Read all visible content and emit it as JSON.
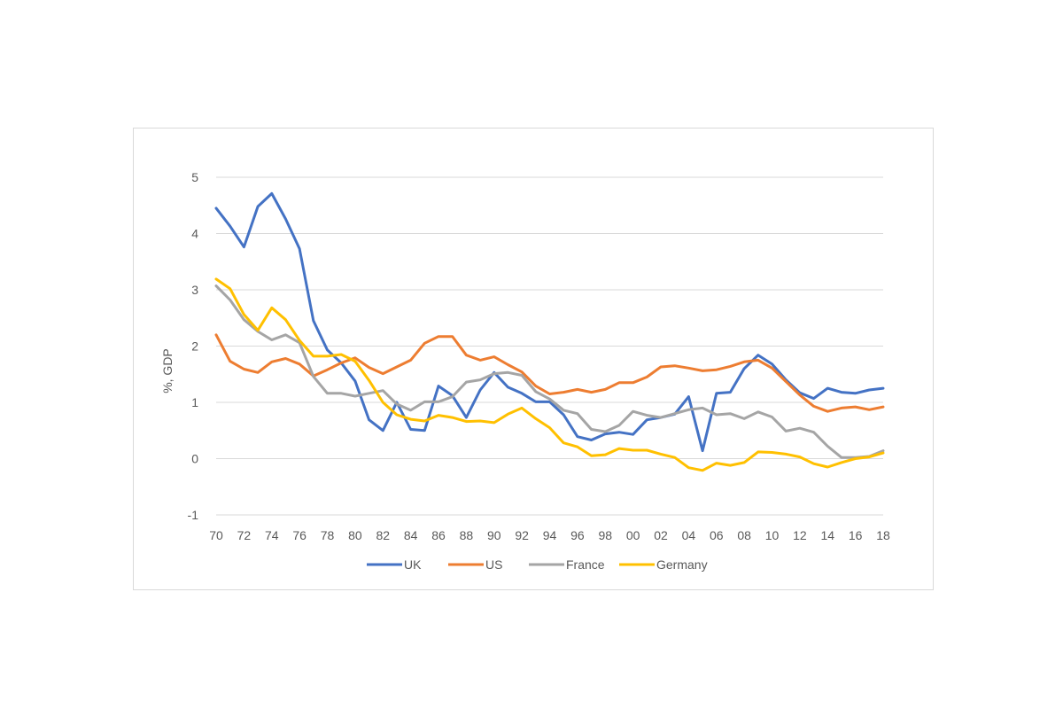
{
  "chart_data": {
    "type": "line",
    "title": "",
    "xlabel": "",
    "ylabel": "%, GDP",
    "ylim": [
      -1,
      5
    ],
    "yticks": [
      "-1",
      "0",
      "1",
      "2",
      "3",
      "4",
      "5"
    ],
    "x": [
      1970,
      1971,
      1972,
      1973,
      1974,
      1975,
      1976,
      1977,
      1978,
      1979,
      1980,
      1981,
      1982,
      1983,
      1984,
      1985,
      1986,
      1987,
      1988,
      1989,
      1990,
      1991,
      1992,
      1993,
      1994,
      1995,
      1996,
      1997,
      1998,
      1999,
      2000,
      2001,
      2002,
      2003,
      2004,
      2005,
      2006,
      2007,
      2008,
      2009,
      2010,
      2011,
      2012,
      2013,
      2014,
      2015,
      2016,
      2017,
      2018
    ],
    "xtick_labels": [
      "70",
      "72",
      "74",
      "76",
      "78",
      "80",
      "82",
      "84",
      "86",
      "88",
      "90",
      "92",
      "94",
      "96",
      "98",
      "00",
      "02",
      "04",
      "06",
      "08",
      "10",
      "12",
      "14",
      "16",
      "18"
    ],
    "grid": "horizontal",
    "legend_position": "bottom",
    "series": [
      {
        "name": "UK",
        "color": "#4472C4",
        "values": [
          4.45,
          4.13,
          3.76,
          4.48,
          4.71,
          4.26,
          3.73,
          2.45,
          1.93,
          1.7,
          1.38,
          0.69,
          0.5,
          1.0,
          0.52,
          0.5,
          1.29,
          1.12,
          0.73,
          1.22,
          1.53,
          1.27,
          1.16,
          1.01,
          1.01,
          0.78,
          0.39,
          0.33,
          0.44,
          0.47,
          0.43,
          0.69,
          0.73,
          0.79,
          1.1,
          0.14,
          1.16,
          1.18,
          1.6,
          1.84,
          1.68,
          1.4,
          1.17,
          1.07,
          1.25,
          1.18,
          1.16,
          1.22,
          1.25
        ]
      },
      {
        "name": "US",
        "color": "#ED7D31",
        "values": [
          2.2,
          1.73,
          1.59,
          1.53,
          1.72,
          1.78,
          1.68,
          1.47,
          1.58,
          1.7,
          1.79,
          1.62,
          1.51,
          1.63,
          1.75,
          2.05,
          2.17,
          2.17,
          1.84,
          1.75,
          1.81,
          1.67,
          1.54,
          1.29,
          1.15,
          1.18,
          1.23,
          1.18,
          1.23,
          1.35,
          1.35,
          1.45,
          1.63,
          1.65,
          1.61,
          1.56,
          1.58,
          1.64,
          1.72,
          1.75,
          1.61,
          1.37,
          1.13,
          0.93,
          0.84,
          0.9,
          0.92,
          0.87,
          0.92
        ]
      },
      {
        "name": "France",
        "color": "#A5A5A5",
        "values": [
          3.07,
          2.82,
          2.47,
          2.26,
          2.11,
          2.2,
          2.06,
          1.46,
          1.16,
          1.16,
          1.11,
          1.16,
          1.21,
          0.97,
          0.86,
          1.01,
          1.01,
          1.1,
          1.36,
          1.4,
          1.51,
          1.53,
          1.48,
          1.19,
          1.06,
          0.86,
          0.8,
          0.52,
          0.48,
          0.59,
          0.84,
          0.77,
          0.73,
          0.8,
          0.87,
          0.9,
          0.78,
          0.8,
          0.71,
          0.83,
          0.74,
          0.49,
          0.54,
          0.47,
          0.22,
          0.02,
          0.02,
          0.04,
          0.14
        ]
      },
      {
        "name": "Germany",
        "color": "#FFC000",
        "values": [
          3.19,
          3.02,
          2.56,
          2.28,
          2.68,
          2.47,
          2.1,
          1.82,
          1.82,
          1.85,
          1.73,
          1.39,
          1.0,
          0.78,
          0.7,
          0.67,
          0.77,
          0.73,
          0.66,
          0.67,
          0.64,
          0.79,
          0.9,
          0.71,
          0.55,
          0.28,
          0.21,
          0.05,
          0.07,
          0.18,
          0.15,
          0.15,
          0.08,
          0.02,
          -0.16,
          -0.21,
          -0.08,
          -0.12,
          -0.07,
          0.12,
          0.11,
          0.08,
          0.03,
          -0.09,
          -0.15,
          -0.07,
          0.0,
          0.03,
          0.1
        ]
      }
    ]
  }
}
